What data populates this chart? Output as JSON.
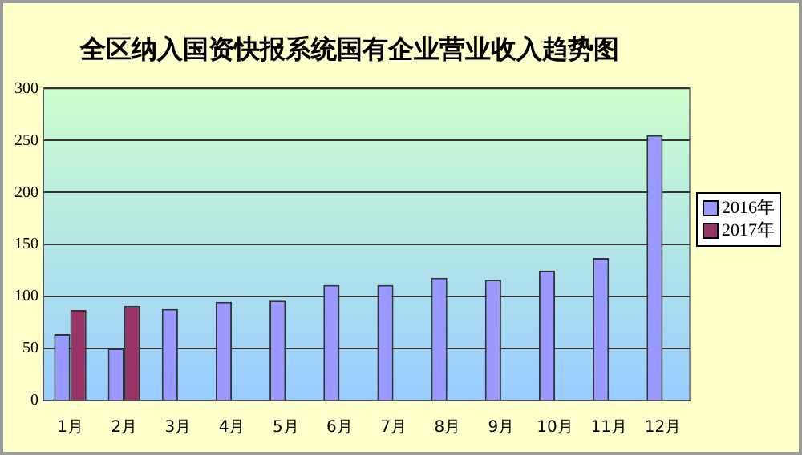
{
  "chart_data": {
    "type": "bar",
    "title": "全区纳入国资快报系统国有企业营业收入趋势图",
    "categories": [
      "1月",
      "2月",
      "3月",
      "4月",
      "5月",
      "6月",
      "7月",
      "8月",
      "9月",
      "10月",
      "11月",
      "12月"
    ],
    "series": [
      {
        "name": "2016年",
        "color": "#9999ff",
        "values": [
          64,
          50,
          88,
          95,
          96,
          111,
          111,
          118,
          116,
          125,
          137,
          255
        ]
      },
      {
        "name": "2017年",
        "color": "#993366",
        "values": [
          87,
          91,
          null,
          null,
          null,
          null,
          null,
          null,
          null,
          null,
          null,
          null
        ]
      }
    ],
    "ylim": [
      0,
      300
    ],
    "yticks": [
      0,
      50,
      100,
      150,
      200,
      250,
      300
    ],
    "grid": "y",
    "legend": "right"
  }
}
